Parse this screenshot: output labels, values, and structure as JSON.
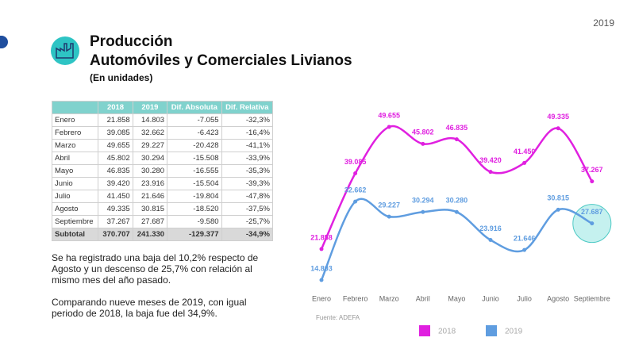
{
  "page_number": "2019",
  "header": {
    "title": "Producción",
    "subtitle": "Automóviles y Comerciales Livianos",
    "unit_note": "(En unidades)"
  },
  "table": {
    "header": [
      "",
      "2018",
      "2019",
      "Dif. Absoluta",
      "Dif. Relativa"
    ],
    "rows": [
      [
        "Enero",
        "21.858",
        "14.803",
        "-7.055",
        "-32,3%"
      ],
      [
        "Febrero",
        "39.085",
        "32.662",
        "-6.423",
        "-16,4%"
      ],
      [
        "Marzo",
        "49.655",
        "29.227",
        "-20.428",
        "-41,1%"
      ],
      [
        "Abril",
        "45.802",
        "30.294",
        "-15.508",
        "-33,9%"
      ],
      [
        "Mayo",
        "46.835",
        "30.280",
        "-16.555",
        "-35,3%"
      ],
      [
        "Junio",
        "39.420",
        "23.916",
        "-15.504",
        "-39,3%"
      ],
      [
        "Julio",
        "41.450",
        "21.646",
        "-19.804",
        "-47,8%"
      ],
      [
        "Agosto",
        "49.335",
        "30.815",
        "-18.520",
        "-37,5%"
      ],
      [
        "Septiembre",
        "37.267",
        "27.687",
        "-9.580",
        "-25,7%"
      ]
    ],
    "subtotal": [
      "Subtotal",
      "370.707",
      "241.330",
      "-129.377",
      "-34,9%"
    ]
  },
  "notes": [
    "Se ha registrado una baja del 10,2% respecto de Agosto y un descenso de 25,7% con relación al mismo mes del año pasado.",
    "Comparando nueve meses de 2019, con igual periodo de 2018, la baja fue del 34,9%."
  ],
  "chart_data": {
    "type": "line",
    "categories": [
      "Enero",
      "Febrero",
      "Marzo",
      "Abril",
      "Mayo",
      "Junio",
      "Julio",
      "Agosto",
      "Septiembre"
    ],
    "series": [
      {
        "name": "2018",
        "color": "#e020e0",
        "values": [
          21858,
          39085,
          49655,
          45802,
          46835,
          39420,
          41450,
          49335,
          37267
        ],
        "value_labels": [
          "21.858",
          "39.085",
          "49.655",
          "45.802",
          "46.835",
          "39.420",
          "41.450",
          "49.335",
          "37.267"
        ]
      },
      {
        "name": "2019",
        "color": "#5f9de0",
        "values": [
          14803,
          32662,
          29227,
          30294,
          30280,
          23916,
          21646,
          30815,
          27687
        ],
        "value_labels": [
          "14.803",
          "32.662",
          "29.227",
          "30.294",
          "30.280",
          "23.916",
          "21.646",
          "30.815",
          "27.687"
        ]
      }
    ],
    "source": "Fuente: ADEFA",
    "grid": false
  }
}
